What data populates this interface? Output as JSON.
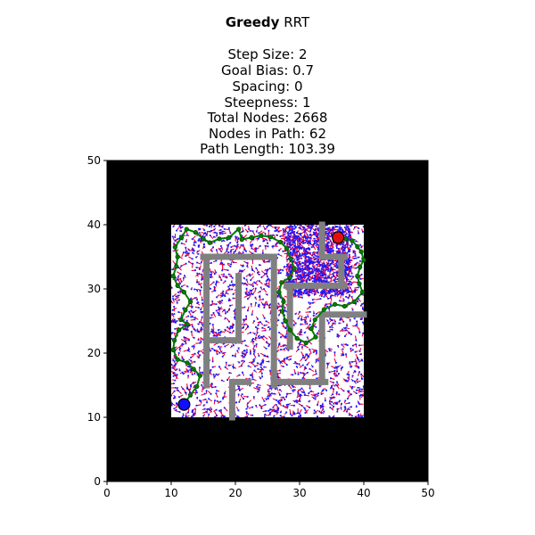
{
  "title": {
    "algorithm": "Greedy",
    "method": "RRT",
    "lines": [
      "Step Size: 2",
      "Goal Bias: 0.7",
      "Spacing: 0",
      "Steepness: 1",
      "Total Nodes: 2668",
      "Nodes in Path: 62",
      "Path Length: 103.39"
    ]
  },
  "chart_data": {
    "type": "scatter",
    "title": "Greedy RRT",
    "xlabel": "",
    "ylabel": "",
    "xlim": [
      0,
      50
    ],
    "ylim": [
      0,
      50
    ],
    "x_ticks": [
      0,
      10,
      20,
      30,
      40,
      50
    ],
    "y_ticks": [
      0,
      10,
      20,
      30,
      40,
      50
    ],
    "grid": false,
    "parameters": {
      "step_size": 2,
      "goal_bias": 0.7,
      "spacing": 0,
      "steepness": 1,
      "total_nodes": 2668,
      "nodes_in_path": 62,
      "path_length": 103.39
    },
    "workspace": {
      "x": [
        10,
        40
      ],
      "y": [
        10,
        40
      ]
    },
    "start": {
      "x": 12,
      "y": 12
    },
    "goal": {
      "x": 36,
      "y": 38
    },
    "walls": [
      {
        "x1": 15,
        "y1": 35,
        "x2": 26,
        "y2": 35
      },
      {
        "x1": 15.5,
        "y1": 35,
        "x2": 15.5,
        "y2": 15
      },
      {
        "x1": 26,
        "y1": 35,
        "x2": 26,
        "y2": 15
      },
      {
        "x1": 15.5,
        "y1": 22,
        "x2": 20,
        "y2": 22
      },
      {
        "x1": 20.5,
        "y1": 32,
        "x2": 20.5,
        "y2": 22
      },
      {
        "x1": 20,
        "y1": 15.5,
        "x2": 22,
        "y2": 15.5
      },
      {
        "x1": 19.5,
        "y1": 15.5,
        "x2": 19.5,
        "y2": 10
      },
      {
        "x1": 26,
        "y1": 15.5,
        "x2": 34,
        "y2": 15.5
      },
      {
        "x1": 33.5,
        "y1": 26,
        "x2": 33.5,
        "y2": 15.5
      },
      {
        "x1": 33.5,
        "y1": 26,
        "x2": 40,
        "y2": 26
      },
      {
        "x1": 28,
        "y1": 30.5,
        "x2": 37,
        "y2": 30.5
      },
      {
        "x1": 28.5,
        "y1": 30.5,
        "x2": 28.5,
        "y2": 21
      },
      {
        "x1": 36.5,
        "y1": 35,
        "x2": 36.5,
        "y2": 30.5
      },
      {
        "x1": 34,
        "y1": 35,
        "x2": 37,
        "y2": 35
      },
      {
        "x1": 33.5,
        "y1": 40,
        "x2": 33.5,
        "y2": 35
      }
    ],
    "path": [
      [
        12,
        12
      ],
      [
        13,
        13.5
      ],
      [
        14,
        14.8
      ],
      [
        14.5,
        16.5
      ],
      [
        13.5,
        17.5
      ],
      [
        12.5,
        18.5
      ],
      [
        11,
        19
      ],
      [
        10.3,
        20.5
      ],
      [
        10.5,
        22
      ],
      [
        11.2,
        23.6
      ],
      [
        12.5,
        24.5
      ],
      [
        11.5,
        25.2
      ],
      [
        12.2,
        26.7
      ],
      [
        13,
        28
      ],
      [
        12,
        29.5
      ],
      [
        11,
        30.5
      ],
      [
        10.3,
        32
      ],
      [
        10.8,
        33.5
      ],
      [
        11,
        35
      ],
      [
        10.6,
        36.5
      ],
      [
        11.6,
        38
      ],
      [
        12.4,
        39.3
      ],
      [
        13.8,
        38.8
      ],
      [
        15,
        37.8
      ],
      [
        16,
        37.2
      ],
      [
        17.5,
        37.8
      ],
      [
        19,
        38
      ],
      [
        20.5,
        39.3
      ],
      [
        21,
        37.7
      ],
      [
        22.5,
        38
      ],
      [
        24,
        38.3
      ],
      [
        25.5,
        38.1
      ],
      [
        27,
        37.3
      ],
      [
        28,
        36.3
      ],
      [
        28.6,
        34.7
      ],
      [
        29.2,
        33.2
      ],
      [
        28.5,
        31.8
      ],
      [
        27.2,
        31
      ],
      [
        26.8,
        29.5
      ],
      [
        27.5,
        28
      ],
      [
        27.3,
        26.5
      ],
      [
        27.8,
        25
      ],
      [
        28.5,
        23.6
      ],
      [
        29.6,
        22.3
      ],
      [
        31,
        21.6
      ],
      [
        32.5,
        22.5
      ],
      [
        31.8,
        23.8
      ],
      [
        32.4,
        25.2
      ],
      [
        33.8,
        26.8
      ],
      [
        35.5,
        27.6
      ],
      [
        37,
        27.3
      ],
      [
        38.5,
        28
      ],
      [
        39.8,
        29.5
      ],
      [
        39.3,
        30.8
      ],
      [
        39,
        32
      ],
      [
        39.4,
        33.4
      ],
      [
        40,
        34.5
      ],
      [
        39.6,
        35.8
      ],
      [
        39,
        36.6
      ],
      [
        38.2,
        37.5
      ],
      [
        37.2,
        37.8
      ],
      [
        36,
        38
      ]
    ],
    "tree_colors": {
      "nodes": "#1a1aff",
      "edges": "#e8003d",
      "path": "#008000",
      "walls": "#808080",
      "free": "#ffffff",
      "obstacle": "#000000"
    }
  }
}
